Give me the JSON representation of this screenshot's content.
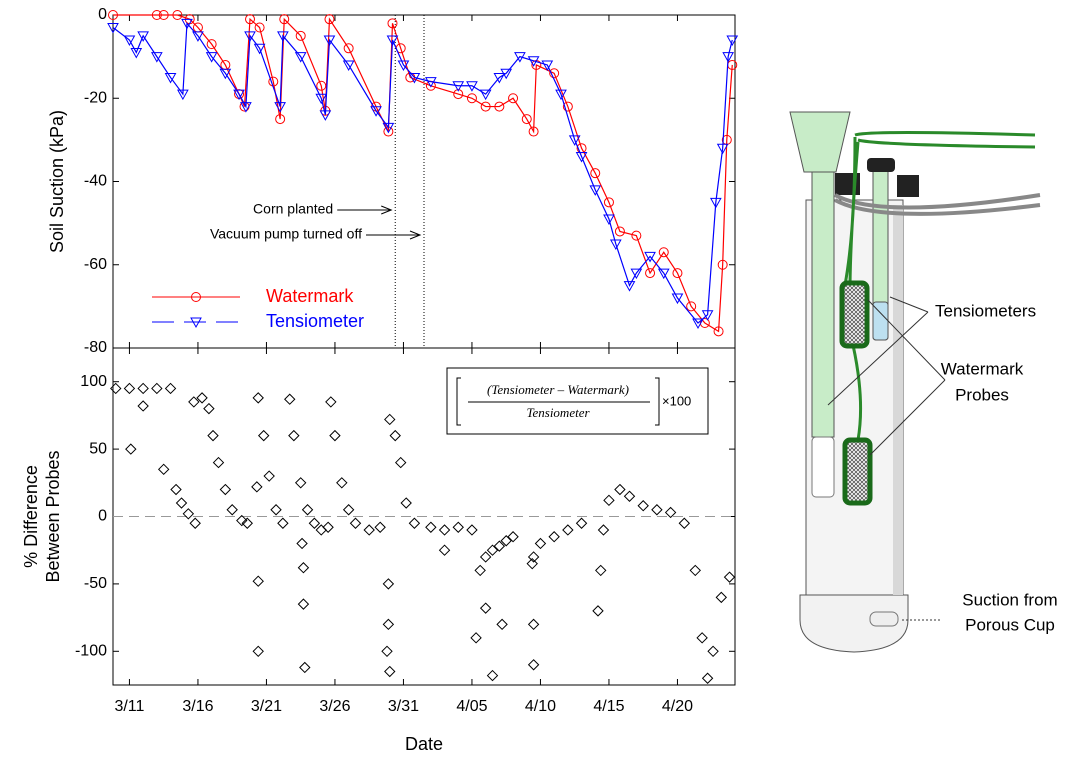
{
  "chart_data": [
    {
      "type": "line",
      "y_label": "Soil Suction (kPa)",
      "xlim": [
        -1.2,
        44.2
      ],
      "ylim": [
        -80,
        0
      ],
      "yticks": [
        0,
        -20,
        -40,
        -60,
        -80
      ],
      "legend": "lower-left",
      "annotations": [
        {
          "text": "Corn planted",
          "x": 19.4
        },
        {
          "text": "Vacuum pump turned off",
          "x": 21.5
        }
      ],
      "series": [
        {
          "name": "Watermark",
          "color": "#ff0000",
          "marker": "circle",
          "x": [
            -1.2,
            2,
            2.5,
            3.5,
            4.4,
            5,
            6,
            7,
            8,
            8.4,
            8.8,
            9.5,
            10.5,
            11,
            11.3,
            12.5,
            14,
            14.3,
            14.6,
            16,
            18,
            18.9,
            19.2,
            19.8,
            20.5,
            22,
            24,
            25,
            26,
            27,
            28,
            29,
            29.5,
            29.7,
            31,
            32,
            33,
            34,
            35,
            35.8,
            37,
            38,
            39,
            40,
            41,
            42,
            43,
            43.3,
            43.6,
            44
          ],
          "values": [
            0,
            0,
            0,
            0,
            -1,
            -3,
            -7,
            -12,
            -19,
            -22,
            -1,
            -3,
            -16,
            -25,
            -1,
            -5,
            -17,
            -23,
            -1,
            -8,
            -22,
            -28,
            -2,
            -8,
            -15,
            -17,
            -19,
            -20,
            -22,
            -22,
            -20,
            -25,
            -28,
            -12,
            -14,
            -22,
            -32,
            -38,
            -45,
            -52,
            -53,
            -62,
            -57,
            -62,
            -70,
            -74,
            -76,
            -60,
            -30,
            -12
          ]
        },
        {
          "name": "Tensiometer",
          "color": "#0000ff",
          "marker": "triangle-down",
          "x": [
            -1.2,
            0,
            0.5,
            1,
            2,
            3,
            3.9,
            4.2,
            5,
            6,
            7,
            8,
            8.5,
            8.8,
            9.5,
            11,
            11.2,
            12.5,
            14,
            14.3,
            14.6,
            16,
            18,
            18.9,
            19.2,
            20,
            20.8,
            22,
            24,
            25,
            26,
            27,
            27.5,
            28.5,
            29.5,
            30.5,
            31.5,
            32.5,
            33,
            34,
            35,
            35.5,
            36.5,
            37,
            38,
            39,
            40,
            41.5,
            42.2,
            42.8,
            43.3,
            43.7,
            44
          ],
          "values": [
            -3,
            -6,
            -9,
            -5,
            -10,
            -15,
            -19,
            -2,
            -5,
            -10,
            -14,
            -19,
            -22,
            -5,
            -8,
            -22,
            -5,
            -10,
            -20,
            -24,
            -6,
            -12,
            -23,
            -27,
            -6,
            -12,
            -15,
            -16,
            -17,
            -17,
            -19,
            -15,
            -14,
            -10,
            -11,
            -12,
            -19,
            -30,
            -34,
            -42,
            -49,
            -55,
            -65,
            -62,
            -58,
            -62,
            -68,
            -74,
            -72,
            -45,
            -32,
            -10,
            -6
          ]
        }
      ]
    },
    {
      "type": "scatter",
      "y_label": [
        "% Difference",
        "Between Probes"
      ],
      "x_label": "Date",
      "xlim": [
        -1.2,
        44.2
      ],
      "ylim": [
        -125,
        125
      ],
      "yticks": [
        100,
        50,
        0,
        -50,
        -100
      ],
      "xticks": [
        {
          "value": 0,
          "label": "3/11"
        },
        {
          "value": 5,
          "label": "3/16"
        },
        {
          "value": 10,
          "label": "3/21"
        },
        {
          "value": 15,
          "label": "3/26"
        },
        {
          "value": 20,
          "label": "3/31"
        },
        {
          "value": 25,
          "label": "4/05"
        },
        {
          "value": 30,
          "label": "4/10"
        },
        {
          "value": 35,
          "label": "4/15"
        },
        {
          "value": 40,
          "label": "4/20"
        }
      ],
      "equation": {
        "numerator": "(Tensiometer – Watermark)",
        "denominator": "Tensiometer",
        "factor": "×100"
      },
      "color": "#000000",
      "marker": "diamond",
      "x": [
        -1,
        0,
        1,
        2,
        3,
        3.4,
        3.8,
        4.3,
        4.8,
        0.1,
        1,
        2.5,
        4.7,
        5.3,
        5.8,
        6.1,
        6.5,
        7,
        7.5,
        8.2,
        8.6,
        9.4,
        9.8,
        10.2,
        10.7,
        11.2,
        9.3,
        9.4,
        9.4,
        11.7,
        12,
        12.5,
        13,
        13.5,
        14,
        14.5,
        12.6,
        12.7,
        12.7,
        12.8,
        14.7,
        15,
        15.5,
        16,
        16.5,
        17.5,
        18.3,
        19,
        19.4,
        19.8,
        20.2,
        20.8,
        22,
        23,
        24,
        25,
        18.9,
        18.9,
        18.8,
        19,
        23,
        25.6,
        26,
        26.5,
        27,
        27.5,
        28,
        25.3,
        26,
        26.5,
        27.2,
        29.5,
        30,
        31,
        32,
        33,
        29.4,
        29.5,
        29.5,
        34.2,
        34.4,
        34.6,
        35,
        35.8,
        36.5,
        37.5,
        38.5,
        39.5,
        40.5,
        41.3,
        41.8,
        42.2,
        42.6,
        43.2,
        43.8
      ],
      "values": [
        95,
        95,
        95,
        95,
        95,
        20,
        10,
        2,
        -5,
        50,
        82,
        35,
        85,
        88,
        80,
        60,
        40,
        20,
        5,
        -3,
        -5,
        88,
        60,
        30,
        5,
        -5,
        22,
        -48,
        -100,
        87,
        60,
        25,
        5,
        -5,
        -10,
        -8,
        -20,
        -38,
        -65,
        -112,
        85,
        60,
        25,
        5,
        -5,
        -10,
        -8,
        72,
        60,
        40,
        10,
        -5,
        -8,
        -10,
        -8,
        -10,
        -50,
        -80,
        -100,
        -115,
        -25,
        -40,
        -30,
        -25,
        -22,
        -18,
        -15,
        -90,
        -68,
        -118,
        -80,
        -30,
        -20,
        -15,
        -10,
        -5,
        -35,
        -80,
        -110,
        -70,
        -40,
        -10,
        12,
        20,
        15,
        8,
        5,
        3,
        -5,
        -40,
        -90,
        -120,
        -100,
        -60,
        -45
      ]
    }
  ],
  "diagram": {
    "labels": [
      "Tensiometers",
      "Watermark",
      "Probes",
      "Suction from",
      "Porous Cup"
    ]
  }
}
